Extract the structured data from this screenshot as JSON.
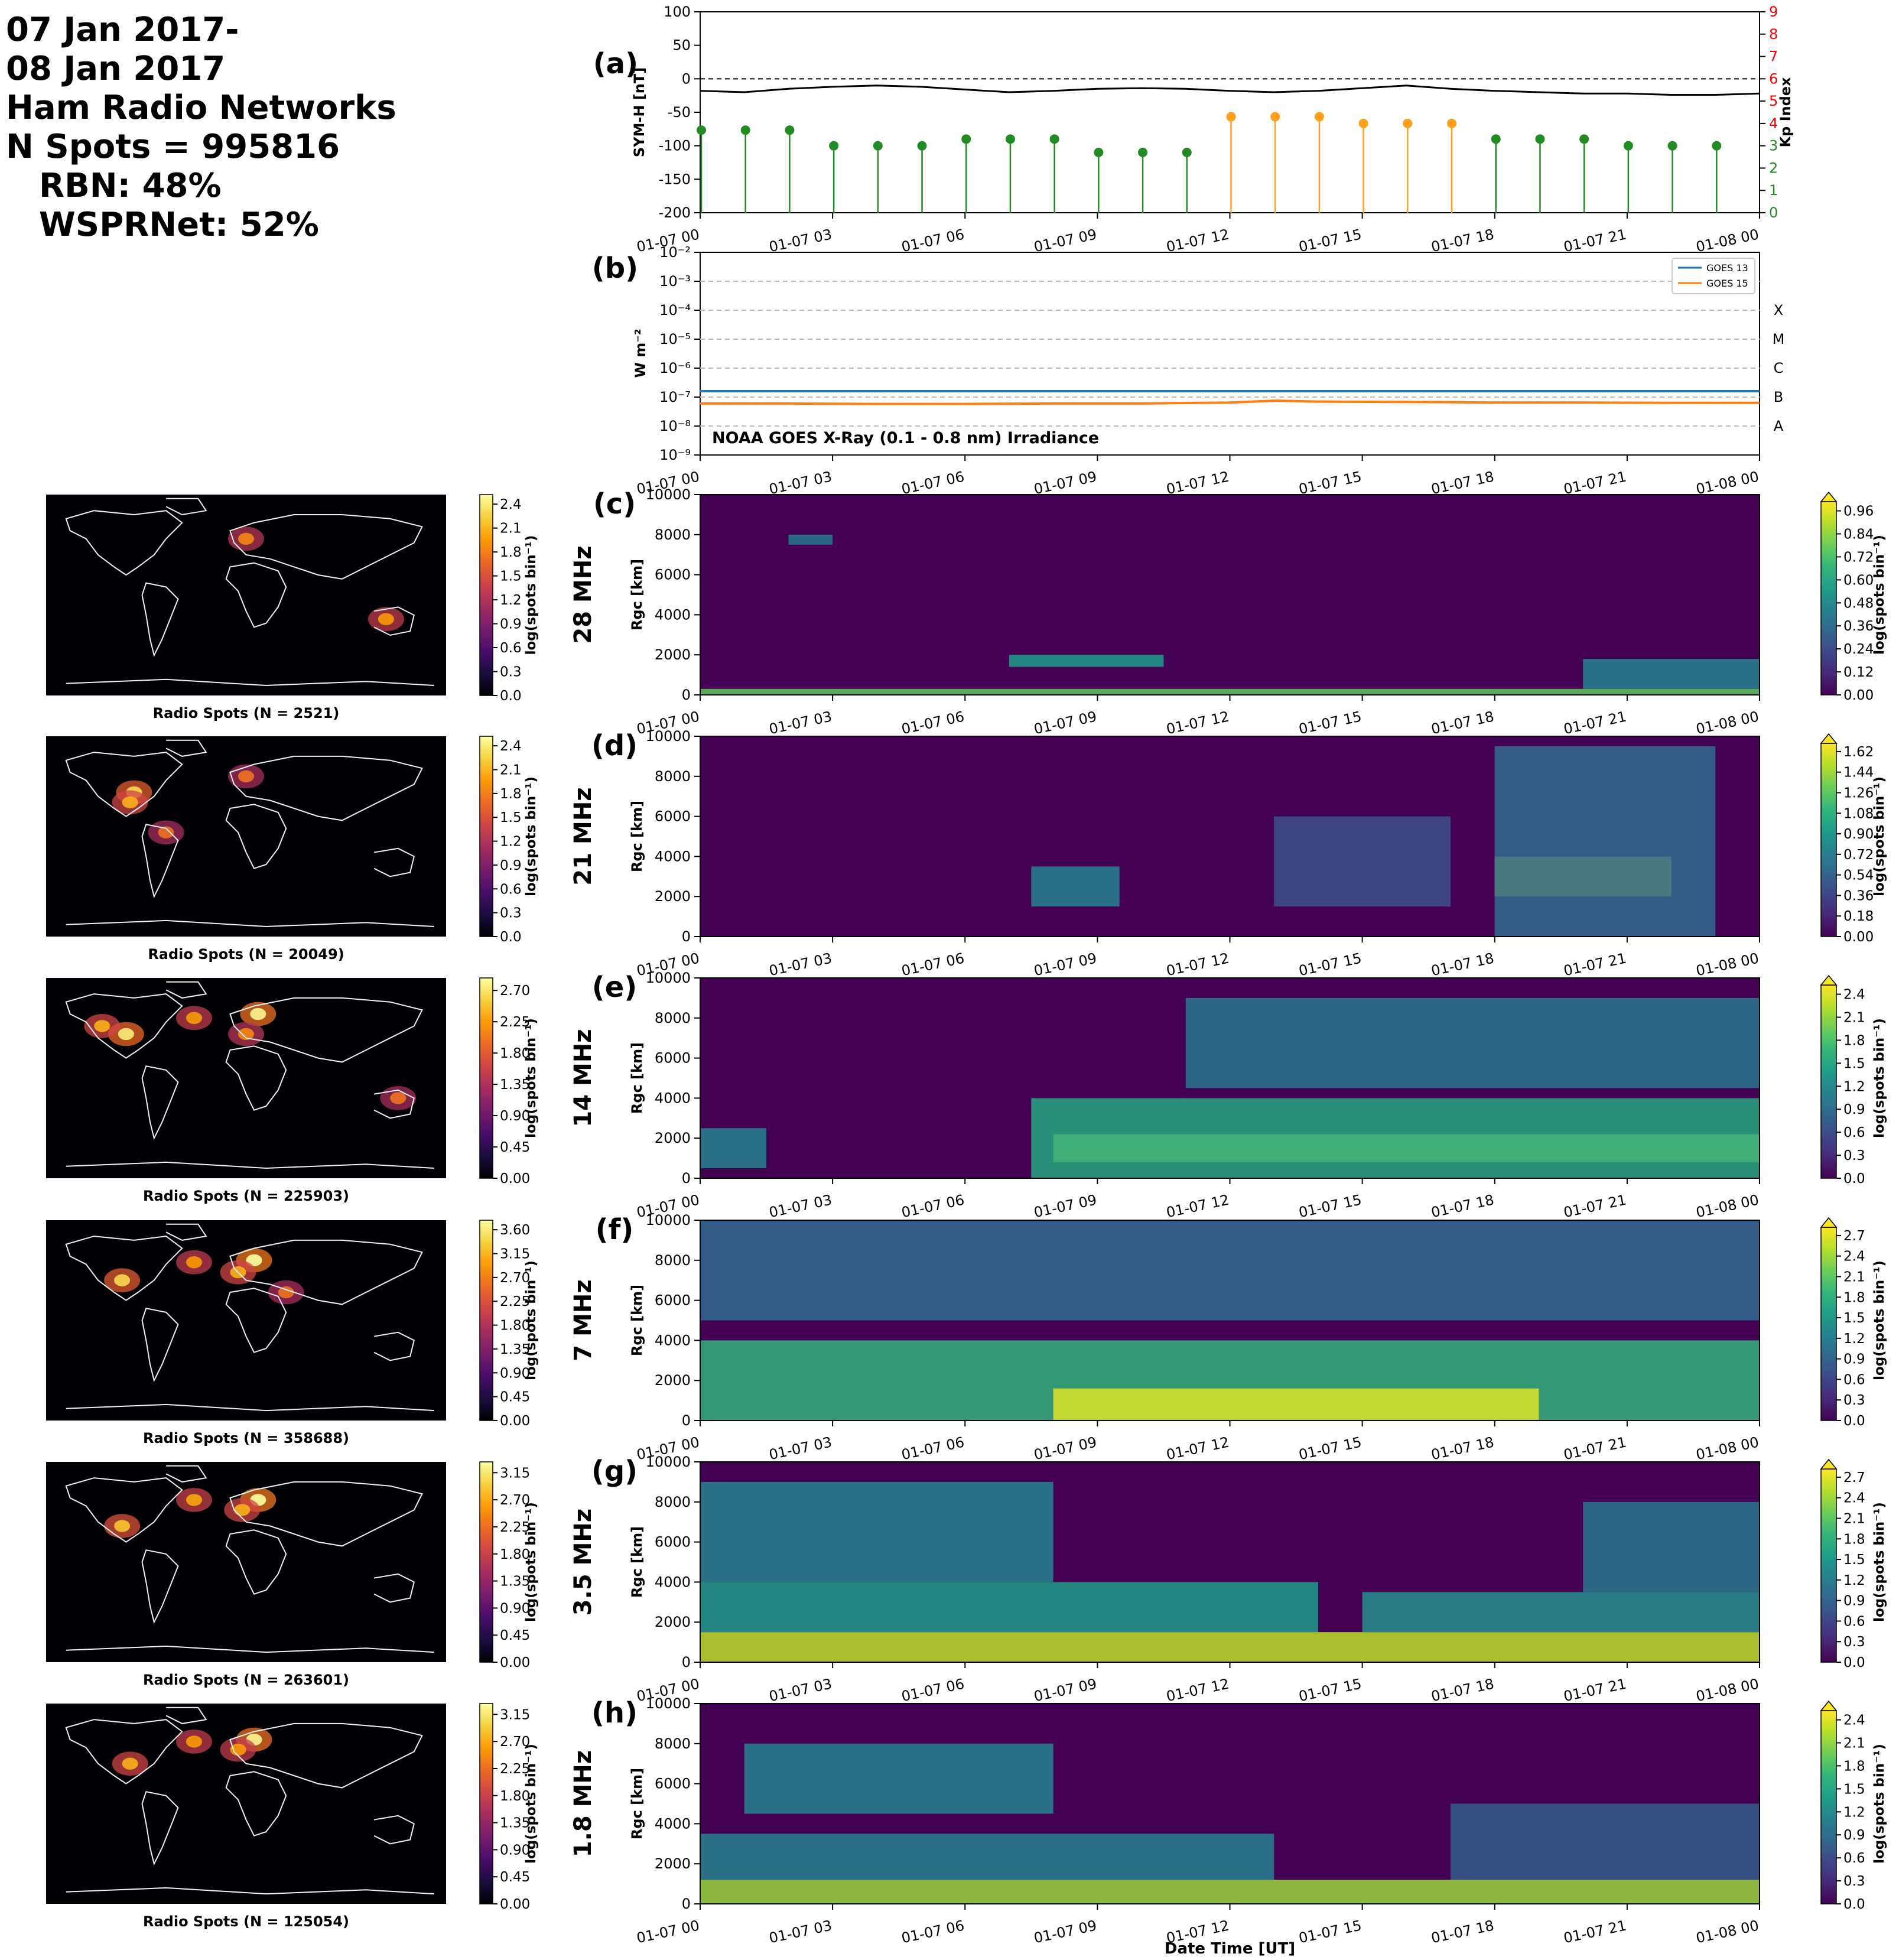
{
  "header": {
    "line1": "07 Jan 2017-",
    "line2": "08 Jan 2017",
    "line3": "Ham Radio Networks",
    "line4": "N Spots = 995816",
    "line5": "RBN: 48%",
    "line6": "WSPRNet: 52%"
  },
  "time_ticks": [
    "01-07 00",
    "01-07 03",
    "01-07 06",
    "01-07 09",
    "01-07 12",
    "01-07 15",
    "01-07 18",
    "01-07 21",
    "01-08 00"
  ],
  "xlabel": "Date Time [UT]",
  "colors": {
    "symh": "#000000",
    "kp_quiet": "#228b22",
    "kp_active": "#ff9f1c",
    "goes13": "#1f77b4",
    "goes15": "#ff7f0e",
    "kp_axis": "#ff0000"
  },
  "chart_data": [
    {
      "id": "a",
      "type": "line",
      "panel_label": "(a)",
      "ylabel": "SYM-H [nT]",
      "ylabel_right": "Kp Index",
      "ylim": [
        -200,
        100
      ],
      "y_ticks": [
        100,
        50,
        0,
        -50,
        -100,
        -150,
        -200
      ],
      "ylim_right": [
        0,
        9
      ],
      "y_ticks_right": [
        0,
        1,
        2,
        3,
        4,
        5,
        6,
        7,
        8,
        9
      ],
      "x_hours": [
        0,
        1,
        2,
        3,
        4,
        5,
        6,
        7,
        8,
        9,
        10,
        11,
        12,
        13,
        14,
        15,
        16,
        17,
        18,
        19,
        20,
        21,
        22,
        23,
        24
      ],
      "series": [
        {
          "values": [
            -18,
            -20,
            -15,
            -12,
            -10,
            -12,
            -16,
            -20,
            -18,
            -15,
            -14,
            -15,
            -18,
            -20,
            -18,
            -14,
            -10,
            -15,
            -18,
            -20,
            -22,
            -22,
            -24,
            -24,
            -22
          ]
        }
      ],
      "kp": {
        "x_hours": [
          0,
          1,
          2,
          3,
          4,
          5,
          6,
          7,
          8,
          9,
          10,
          11,
          12,
          13,
          14,
          15,
          16,
          17,
          18,
          19,
          20,
          21,
          22,
          23
        ],
        "values": [
          3.7,
          3.7,
          3.7,
          3.0,
          3.0,
          3.0,
          3.3,
          3.3,
          3.3,
          2.7,
          2.7,
          2.7,
          4.3,
          4.3,
          4.3,
          4.0,
          4.0,
          4.0,
          3.3,
          3.3,
          3.3,
          3.0,
          3.0,
          3.0
        ]
      }
    },
    {
      "id": "b",
      "type": "line",
      "panel_label": "(b)",
      "ylabel": "W m⁻²",
      "annotation": "NOAA GOES X-Ray (0.1 - 0.8 nm) Irradiance",
      "log_scale": true,
      "ylim": [
        1e-09,
        0.01
      ],
      "y_ticks": [
        "10⁻²",
        "10⁻³",
        "10⁻⁴",
        "10⁻⁵",
        "10⁻⁶",
        "10⁻⁷",
        "10⁻⁸",
        "10⁻⁹"
      ],
      "flare_classes": [
        "X",
        "M",
        "C",
        "B",
        "A"
      ],
      "legend_position": "top-right",
      "x_hours": [
        0,
        2,
        4,
        6,
        8,
        10,
        12,
        13,
        14,
        16,
        18,
        20,
        22,
        24
      ],
      "series": [
        {
          "name": "GOES 13",
          "values": [
            1.6e-07,
            1.6e-07,
            1.6e-07,
            1.6e-07,
            1.6e-07,
            1.6e-07,
            1.6e-07,
            1.6e-07,
            1.6e-07,
            1.6e-07,
            1.6e-07,
            1.6e-07,
            1.6e-07,
            1.6e-07
          ]
        },
        {
          "name": "GOES 15",
          "values": [
            6e-08,
            6e-08,
            5.8e-08,
            5.8e-08,
            6e-08,
            6e-08,
            6.5e-08,
            7.5e-08,
            7e-08,
            6.8e-08,
            6.5e-08,
            6.5e-08,
            6.3e-08,
            6.3e-08
          ]
        }
      ]
    },
    {
      "id": "c",
      "type": "heatmap",
      "panel_label": "(c)",
      "band": "28 MHz",
      "ylabel": "Rgc [km]",
      "ylim": [
        0,
        10000
      ],
      "y_ticks": [
        0,
        2000,
        4000,
        6000,
        8000,
        10000
      ],
      "colorbar_label": "log(spots bin⁻¹)",
      "colorbar_ticks": [
        "0.00",
        "0.12",
        "0.24",
        "0.36",
        "0.48",
        "0.60",
        "0.72",
        "0.84",
        "0.96"
      ],
      "map_caption": "Radio Spots (N = 2521)",
      "map_colorbar_ticks": [
        "0.0",
        "0.3",
        "0.6",
        "0.9",
        "1.2",
        "1.5",
        "1.8",
        "2.1",
        "2.4"
      ],
      "map_colorbar_label": "log(spots bin⁻¹)",
      "activity": [
        {
          "t0": 0,
          "t1": 24,
          "r0": 0,
          "r1": 300,
          "v": 0.75
        },
        {
          "t0": 7,
          "t1": 10.5,
          "r0": 1400,
          "r1": 2000,
          "v": 0.55
        },
        {
          "t0": 20,
          "t1": 24,
          "r0": 300,
          "r1": 1800,
          "v": 0.45
        },
        {
          "t0": 2,
          "t1": 3,
          "r0": 7500,
          "r1": 8000,
          "v": 0.4
        }
      ]
    },
    {
      "id": "d",
      "type": "heatmap",
      "panel_label": "(d)",
      "band": "21 MHz",
      "ylabel": "Rgc [km]",
      "ylim": [
        0,
        10000
      ],
      "y_ticks": [
        0,
        2000,
        4000,
        6000,
        8000,
        10000
      ],
      "colorbar_label": "log(spots bin⁻¹)",
      "colorbar_ticks": [
        "0.00",
        "0.18",
        "0.36",
        "0.54",
        "0.72",
        "0.90",
        "1.08",
        "1.26",
        "1.44",
        "1.62"
      ],
      "map_caption": "Radio Spots (N = 20049)",
      "map_colorbar_ticks": [
        "0.0",
        "0.3",
        "0.6",
        "0.9",
        "1.2",
        "1.5",
        "1.8",
        "2.1",
        "2.4"
      ],
      "map_colorbar_label": "log(spots bin⁻¹)",
      "activity": [
        {
          "t0": 18,
          "t1": 22,
          "r0": 2000,
          "r1": 4000,
          "v": 0.95
        },
        {
          "t0": 18,
          "t1": 23,
          "r0": 0,
          "r1": 9500,
          "v": 0.35
        },
        {
          "t0": 7.5,
          "t1": 9.5,
          "r0": 1500,
          "r1": 3500,
          "v": 0.45
        },
        {
          "t0": 13,
          "t1": 17,
          "r0": 1500,
          "r1": 6000,
          "v": 0.25
        }
      ]
    },
    {
      "id": "e",
      "type": "heatmap",
      "panel_label": "(e)",
      "band": "14 MHz",
      "ylabel": "Rgc [km]",
      "ylim": [
        0,
        10000
      ],
      "y_ticks": [
        0,
        2000,
        4000,
        6000,
        8000,
        10000
      ],
      "colorbar_label": "log(spots bin⁻¹)",
      "colorbar_ticks": [
        "0.0",
        "0.3",
        "0.6",
        "0.9",
        "1.2",
        "1.5",
        "1.8",
        "2.1",
        "2.4"
      ],
      "map_caption": "Radio Spots (N = 225903)",
      "map_colorbar_ticks": [
        "0.00",
        "0.45",
        "0.90",
        "1.35",
        "1.80",
        "2.25",
        "2.70"
      ],
      "map_colorbar_label": "log(spots bin⁻¹)",
      "activity": [
        {
          "t0": 8,
          "t1": 24,
          "r0": 800,
          "r1": 2200,
          "v": 0.95
        },
        {
          "t0": 7.5,
          "t1": 24,
          "r0": 0,
          "r1": 4000,
          "v": 0.6
        },
        {
          "t0": 11,
          "t1": 24,
          "r0": 4500,
          "r1": 9000,
          "v": 0.4
        },
        {
          "t0": 0,
          "t1": 1.5,
          "r0": 500,
          "r1": 2500,
          "v": 0.45
        }
      ]
    },
    {
      "id": "f",
      "type": "heatmap",
      "panel_label": "(f)",
      "band": "7 MHz",
      "ylabel": "Rgc [km]",
      "ylim": [
        0,
        10000
      ],
      "y_ticks": [
        0,
        2000,
        4000,
        6000,
        8000,
        10000
      ],
      "colorbar_label": "log(spots bin⁻¹)",
      "colorbar_ticks": [
        "0.0",
        "0.3",
        "0.6",
        "0.9",
        "1.2",
        "1.5",
        "1.8",
        "2.1",
        "2.4",
        "2.7"
      ],
      "map_caption": "Radio Spots (N = 358688)",
      "map_colorbar_ticks": [
        "0.00",
        "0.45",
        "0.90",
        "1.35",
        "1.80",
        "2.25",
        "2.70",
        "3.15",
        "3.60"
      ],
      "map_colorbar_label": "log(spots bin⁻¹)",
      "activity": [
        {
          "t0": 0,
          "t1": 24,
          "r0": 0,
          "r1": 4000,
          "v": 0.65
        },
        {
          "t0": 8,
          "t1": 19,
          "r0": 0,
          "r1": 1600,
          "v": 0.95
        },
        {
          "t0": 0,
          "t1": 24,
          "r0": 5000,
          "r1": 10000,
          "v": 0.35
        }
      ]
    },
    {
      "id": "g",
      "type": "heatmap",
      "panel_label": "(g)",
      "band": "3.5 MHz",
      "ylabel": "Rgc [km]",
      "ylim": [
        0,
        10000
      ],
      "y_ticks": [
        0,
        2000,
        4000,
        6000,
        8000,
        10000
      ],
      "colorbar_label": "log(spots bin⁻¹)",
      "colorbar_ticks": [
        "0.0",
        "0.3",
        "0.6",
        "0.9",
        "1.2",
        "1.5",
        "1.8",
        "2.1",
        "2.4",
        "2.7"
      ],
      "map_caption": "Radio Spots (N = 263601)",
      "map_colorbar_ticks": [
        "0.00",
        "0.45",
        "0.90",
        "1.35",
        "1.80",
        "2.25",
        "2.70",
        "3.15"
      ],
      "map_colorbar_label": "log(spots bin⁻¹)",
      "activity": [
        {
          "t0": 0,
          "t1": 24,
          "r0": 0,
          "r1": 1500,
          "v": 0.9
        },
        {
          "t0": 0,
          "t1": 14,
          "r0": 1500,
          "r1": 4000,
          "v": 0.55
        },
        {
          "t0": 0,
          "t1": 8,
          "r0": 4000,
          "r1": 9000,
          "v": 0.45
        },
        {
          "t0": 15,
          "t1": 24,
          "r0": 1500,
          "r1": 3500,
          "v": 0.5
        },
        {
          "t0": 20,
          "t1": 24,
          "r0": 3500,
          "r1": 8000,
          "v": 0.4
        }
      ]
    },
    {
      "id": "h",
      "type": "heatmap",
      "panel_label": "(h)",
      "band": "1.8 MHz",
      "ylabel": "Rgc [km]",
      "ylim": [
        0,
        10000
      ],
      "y_ticks": [
        0,
        2000,
        4000,
        6000,
        8000,
        10000
      ],
      "colorbar_label": "log(spots bin⁻¹)",
      "colorbar_ticks": [
        "0.0",
        "0.3",
        "0.6",
        "0.9",
        "1.2",
        "1.5",
        "1.8",
        "2.1",
        "2.4"
      ],
      "map_caption": "Radio Spots (N = 125054)",
      "map_colorbar_ticks": [
        "0.00",
        "0.45",
        "0.90",
        "1.35",
        "1.80",
        "2.25",
        "2.70",
        "3.15"
      ],
      "map_colorbar_label": "log(spots bin⁻¹)",
      "activity": [
        {
          "t0": 0,
          "t1": 24,
          "r0": 0,
          "r1": 1200,
          "v": 0.85
        },
        {
          "t0": 0,
          "t1": 13,
          "r0": 1200,
          "r1": 3500,
          "v": 0.45
        },
        {
          "t0": 1,
          "t1": 8,
          "r0": 4500,
          "r1": 8000,
          "v": 0.45
        },
        {
          "t0": 17,
          "t1": 24,
          "r0": 1200,
          "r1": 5000,
          "v": 0.3
        }
      ]
    }
  ]
}
